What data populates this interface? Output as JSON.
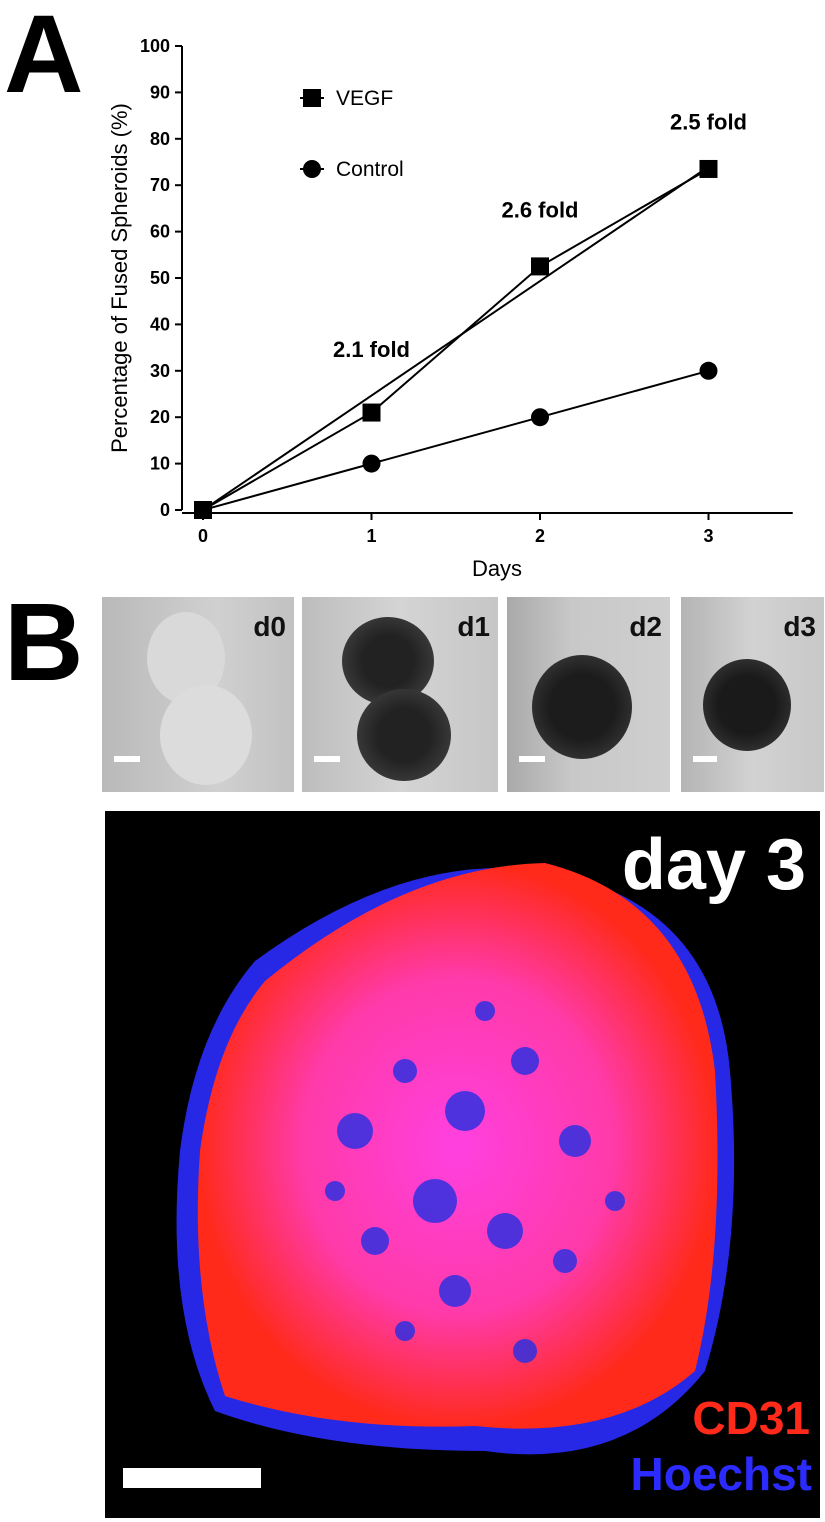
{
  "panel_labels": {
    "a": "A",
    "b": "B"
  },
  "chart_data": {
    "type": "line",
    "x": [
      0,
      1,
      2,
      3
    ],
    "xlabel": "Days",
    "ylabel": "Percentage of Fused Spheroids (%)",
    "xlim": [
      0,
      3.5
    ],
    "ylim": [
      0,
      100
    ],
    "x_ticks": [
      "0",
      "1",
      "2",
      "3"
    ],
    "y_ticks": [
      "0",
      "10",
      "20",
      "30",
      "40",
      "50",
      "60",
      "70",
      "80",
      "90",
      "100"
    ],
    "series": [
      {
        "name": "VEGF",
        "marker": "square",
        "values": [
          0,
          21,
          52.5,
          73.5
        ]
      },
      {
        "name": "Control",
        "marker": "circle",
        "values": [
          0,
          10,
          20,
          30
        ]
      }
    ],
    "fit_line": {
      "x": [
        0,
        3
      ],
      "y": [
        0,
        74
      ]
    },
    "annotations": [
      {
        "x": 1,
        "y": 33,
        "text": "2.1 fold"
      },
      {
        "x": 2,
        "y": 63,
        "text": "2.6 fold"
      },
      {
        "x": 3,
        "y": 82,
        "text": "2.5 fold"
      }
    ],
    "legend_position": "top-left",
    "grid": false,
    "color": "#000000"
  },
  "micrographs": [
    {
      "label": "d0"
    },
    {
      "label": "d1"
    },
    {
      "label": "d2"
    },
    {
      "label": "d3"
    }
  ],
  "confocal": {
    "title": "day 3",
    "channel_1": "CD31",
    "channel_2": "Hoechst",
    "colors": {
      "cd31": "#ff2a1a",
      "hoechst": "#2b2bff",
      "overlap": "#ff40e0"
    }
  }
}
